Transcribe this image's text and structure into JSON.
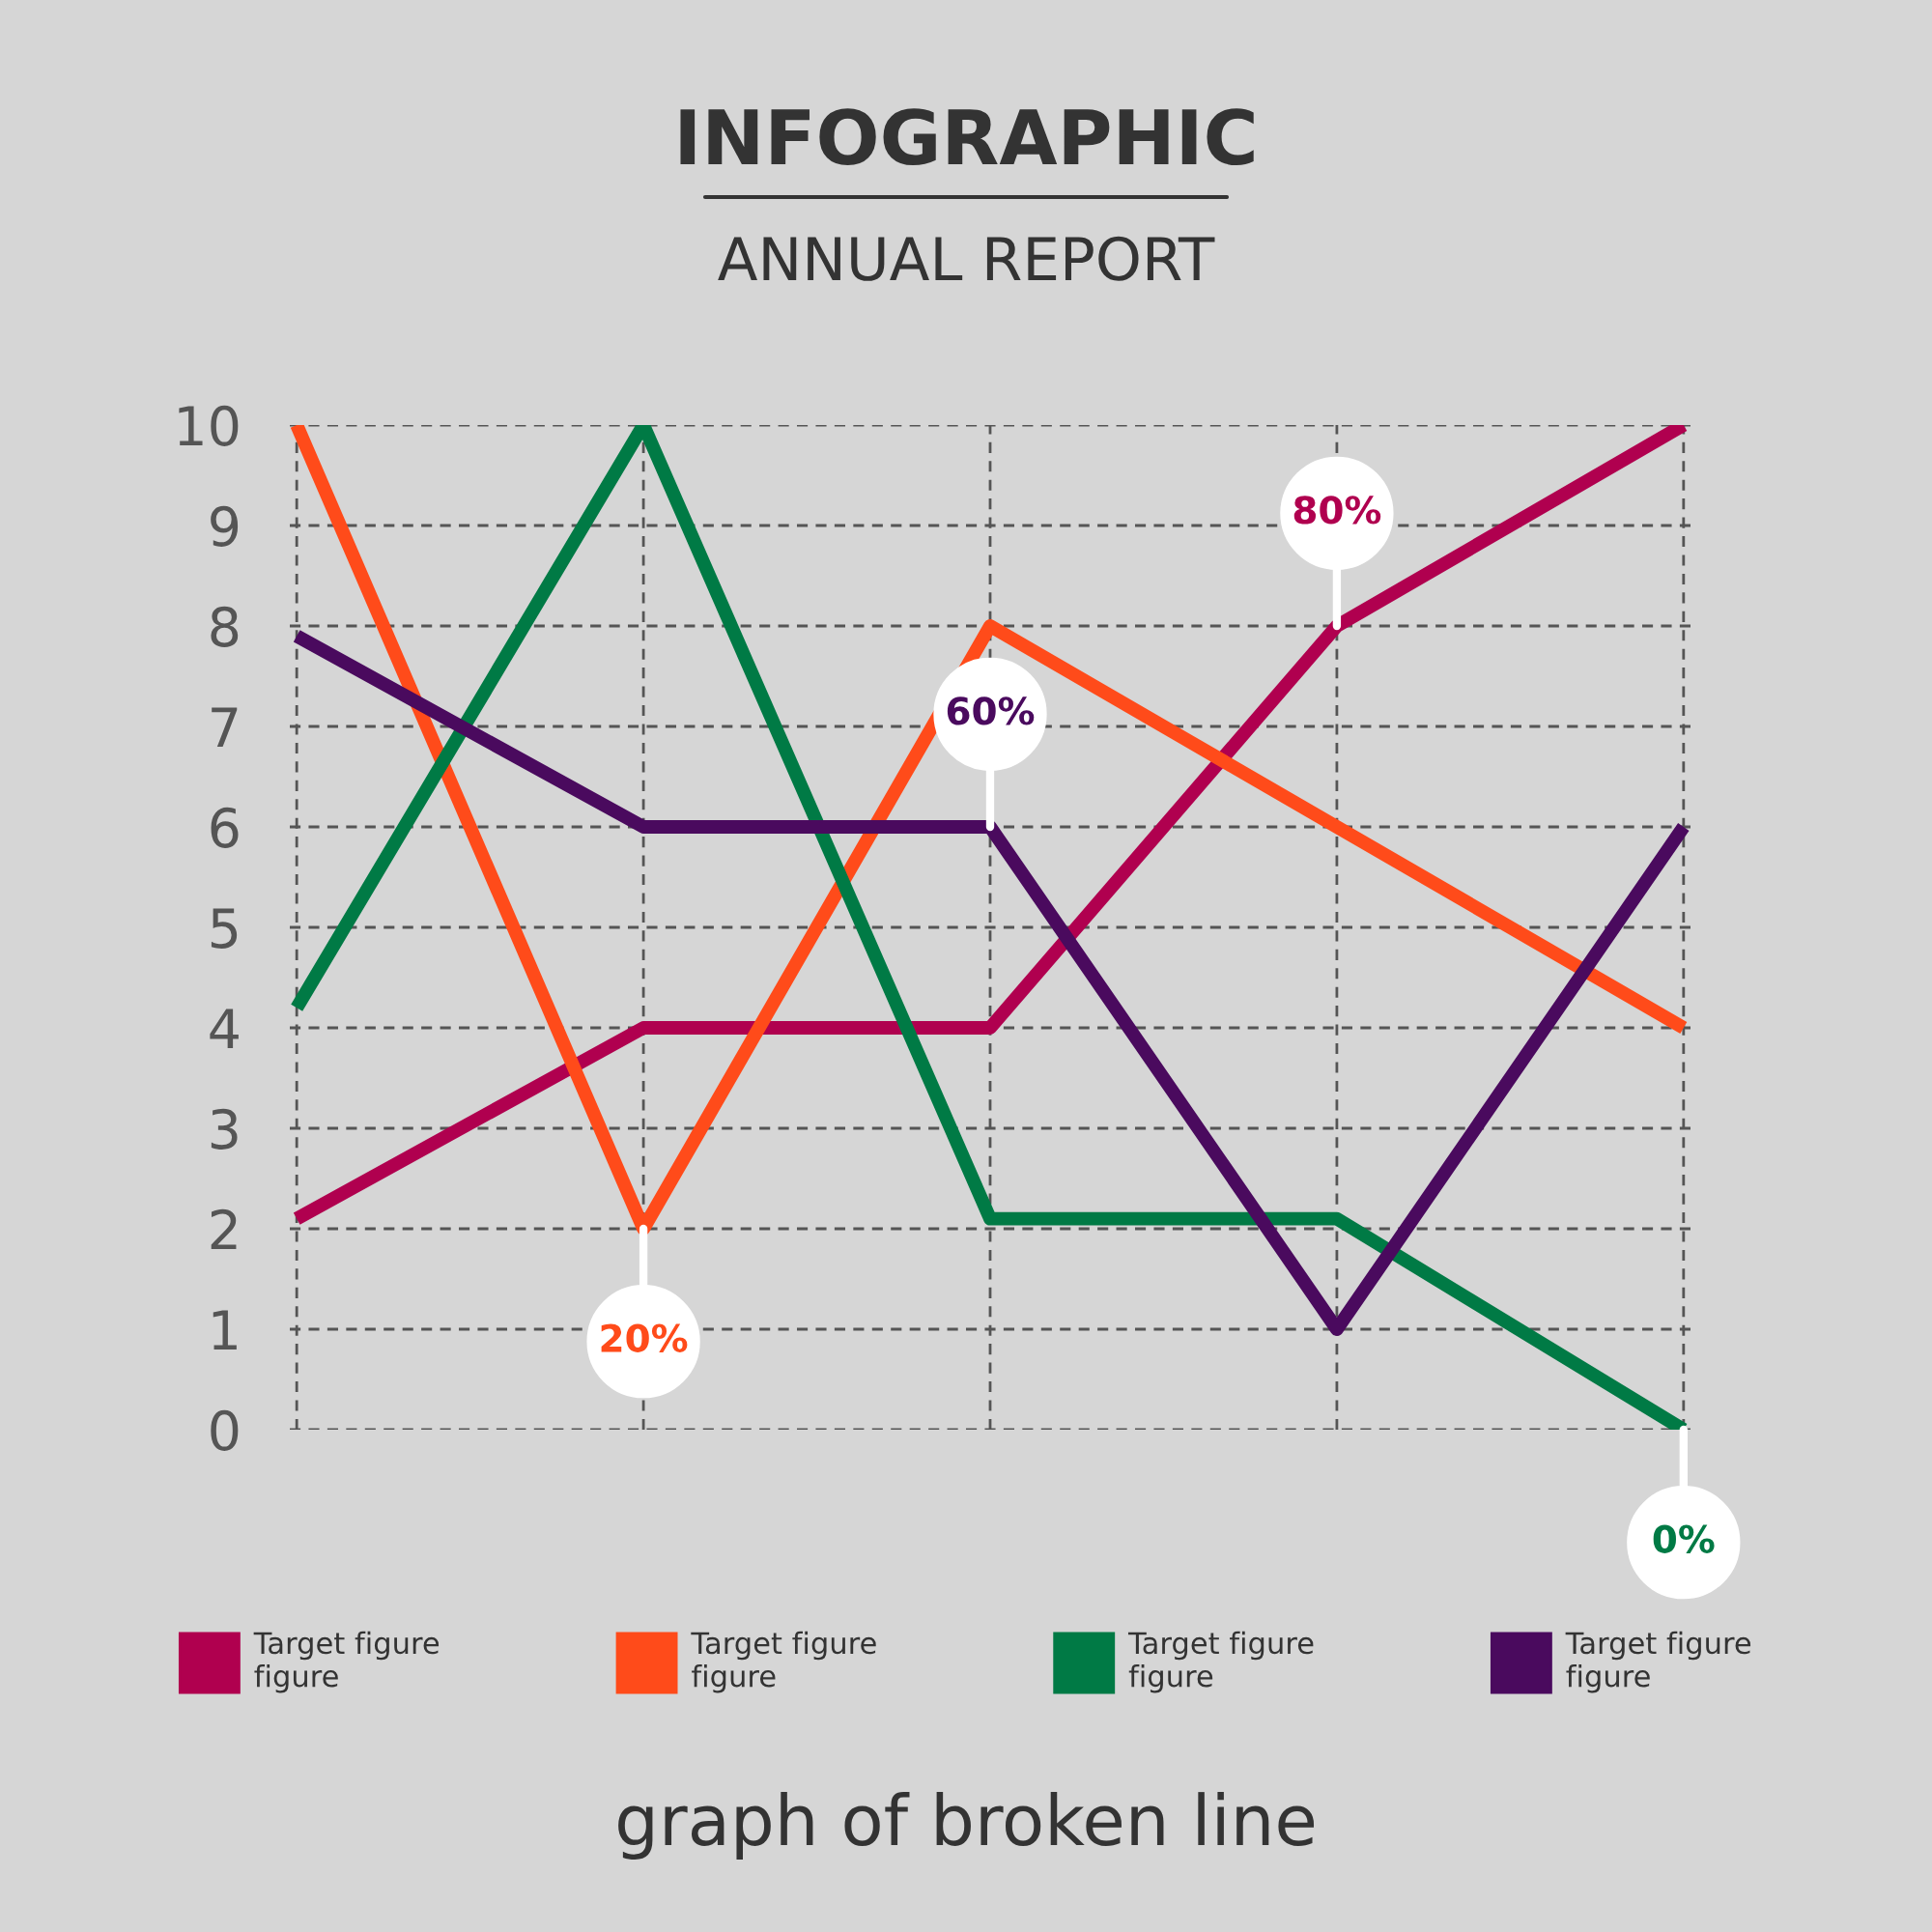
{
  "chart_data": {
    "type": "line",
    "title": "INFOGRAPHIC",
    "subtitle": "ANNUAL REPORT",
    "categories": [
      null,
      null,
      null,
      null,
      null
    ],
    "annotations": [
      {
        "text": "20%",
        "y": 2
      },
      {
        "text": "60%",
        "y": 6
      },
      {
        "text": "80%",
        "y": 8
      },
      {
        "text": "0%",
        "y": 0
      },
      "graph of broken line"
    ],
    "series": [
      {
        "name": "Target figure\nfigure",
        "color": "#b0004f",
        "values": [
          2.1,
          4,
          4,
          8,
          10
        ]
      },
      {
        "name": "Target figure\nfigure",
        "color": "#ff4b1a",
        "values": [
          10,
          2,
          8,
          6,
          4
        ]
      },
      {
        "name": "Target figure\nfigure",
        "color": "#007a45",
        "values": [
          4.2,
          10,
          2.1,
          2.1,
          0
        ]
      },
      {
        "name": "Target figure\nfigure",
        "color": "#4a0a5e",
        "values": [
          7.9,
          6,
          6,
          1,
          6
        ]
      }
    ],
    "ylim": [
      0,
      10
    ],
    "yticks": [
      0,
      1,
      2,
      3,
      4,
      5,
      6,
      7,
      8,
      9,
      10
    ],
    "grid": true,
    "legend": "bottom",
    "marker": "none",
    "line_style": "solid"
  }
}
